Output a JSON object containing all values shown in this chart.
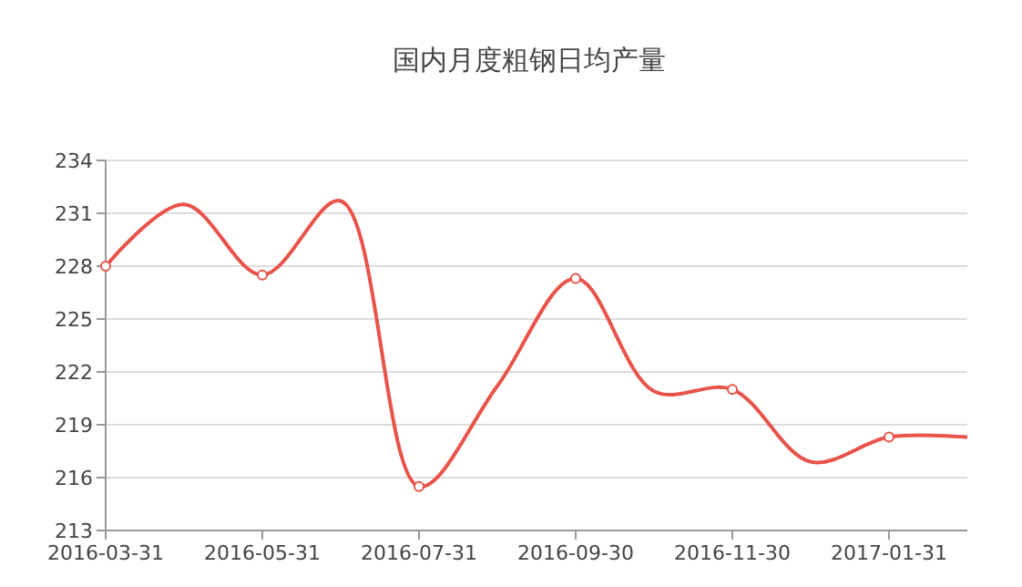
{
  "chart_data": {
    "type": "line",
    "title": "国内月度粗钢日均产量",
    "categories": [
      "2016-03-31",
      null,
      "2016-05-31",
      null,
      "2016-07-31",
      null,
      "2016-09-30",
      null,
      "2016-11-30",
      null,
      "2017-01-31",
      null
    ],
    "series": [
      {
        "color": "#e8534a",
        "values": [
          228.0,
          231.5,
          227.5,
          231.7,
          215.5,
          221.2,
          227.3,
          220.9,
          221.0,
          216.9,
          218.3,
          218.3
        ]
      }
    ],
    "ylim": [
      213,
      234
    ],
    "yticks": [
      213,
      216,
      219,
      222,
      225,
      228,
      231,
      234
    ],
    "grid": "y",
    "marker": "circle",
    "line_style": "solid"
  }
}
